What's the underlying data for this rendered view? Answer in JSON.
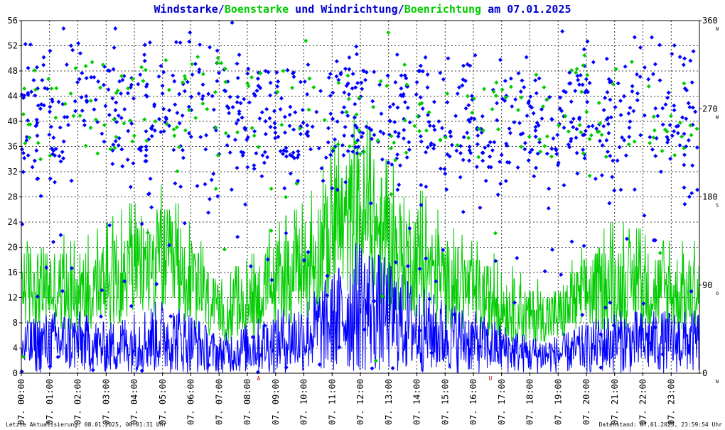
{
  "title_parts": [
    {
      "text": "Windstarke",
      "color": "#0000cc"
    },
    {
      "text": "/",
      "color": "#0000cc"
    },
    {
      "text": "Boenstarke",
      "color": "#00cc00"
    },
    {
      "text": " und ",
      "color": "#0000cc"
    },
    {
      "text": "Windrichtung",
      "color": "#0000cc"
    },
    {
      "text": "/",
      "color": "#0000cc"
    },
    {
      "text": "Boenrichtung",
      "color": "#00cc00"
    },
    {
      "text": " am 07.01.2025",
      "color": "#0000cc"
    }
  ],
  "footer": {
    "left": "Letzte Aktualisierung: 08.01.2025, 00:01:31 Uhr",
    "right": "Datenstand: 07.01.2025, 23:59:54 Uhr"
  },
  "colors": {
    "wind": "#0000ff",
    "gust": "#00cc00",
    "grid": "#000000",
    "marker": "#cc0000"
  },
  "chart_data": {
    "type": "line",
    "x_ticks": [
      "07. 00:00",
      "07. 01:00",
      "07. 02:00",
      "07. 03:00",
      "07. 04:00",
      "07. 05:00",
      "07. 06:00",
      "07. 07:00",
      "07. 08:00",
      "07. 09:00",
      "07. 10:00",
      "07. 11:00",
      "07. 12:00",
      "07. 13:00",
      "07. 14:00",
      "07. 15:00",
      "07. 16:00",
      "07. 17:00",
      "07. 18:00",
      "07. 19:00",
      "07. 20:00",
      "07. 21:00",
      "07. 22:00",
      "07. 23:00"
    ],
    "x_range_hours": [
      0,
      24
    ],
    "y_left": {
      "ticks": [
        "0",
        "4",
        "8",
        "12",
        "16",
        "20",
        "24",
        "28",
        "32",
        "36",
        "40",
        "44",
        "48",
        "52",
        "56"
      ],
      "range": [
        0,
        56
      ]
    },
    "y_right": {
      "ticks": [
        {
          "value": 0,
          "label": "0"
        },
        {
          "value": 90,
          "label": "90"
        },
        {
          "value": 180,
          "label": "180"
        },
        {
          "value": 270,
          "label": "270"
        },
        {
          "value": 360,
          "label": "360"
        }
      ],
      "compass": [
        {
          "value": 0,
          "label": "N"
        },
        {
          "value": 90,
          "label": "O"
        },
        {
          "value": 180,
          "label": "S"
        },
        {
          "value": 270,
          "label": "W"
        },
        {
          "value": 360,
          "label": "N"
        }
      ],
      "range": [
        0,
        360
      ]
    },
    "bottom_markers": [
      {
        "hour": 8.4,
        "label": "A"
      },
      {
        "hour": 16.6,
        "label": "U"
      }
    ],
    "grid": true,
    "series": [
      {
        "name": "Windstarke",
        "color": "#0000ff",
        "kind": "line",
        "hours": [
          0,
          1,
          2,
          3,
          4,
          5,
          6,
          7,
          8,
          9,
          10,
          11,
          12,
          13,
          14,
          15,
          16,
          17,
          18,
          19,
          20,
          21,
          22,
          23,
          24
        ],
        "values": [
          4,
          5,
          5,
          4,
          5,
          6,
          5,
          3,
          4,
          5,
          6,
          8,
          11,
          9,
          7,
          6,
          5,
          4,
          3,
          3,
          4,
          5,
          5,
          5,
          5
        ]
      },
      {
        "name": "Boenstarke",
        "color": "#00cc00",
        "kind": "line",
        "hours": [
          0,
          1,
          2,
          3,
          4,
          5,
          6,
          7,
          8,
          9,
          10,
          11,
          12,
          13,
          14,
          15,
          16,
          17,
          18,
          19,
          20,
          21,
          22,
          23,
          24
        ],
        "values": [
          16,
          15,
          14,
          16,
          18,
          20,
          16,
          10,
          12,
          16,
          18,
          24,
          28,
          22,
          20,
          16,
          14,
          12,
          10,
          10,
          14,
          16,
          15,
          14,
          14
        ]
      },
      {
        "name": "Windrichtung",
        "color": "#0000ff",
        "kind": "scatter",
        "hours": [
          0,
          1,
          2,
          3,
          4,
          5,
          6,
          7,
          8,
          9,
          10,
          11,
          12,
          13,
          14,
          15,
          16,
          17,
          18,
          19,
          20,
          21,
          22,
          23,
          24
        ],
        "values": [
          270,
          250,
          260,
          270,
          255,
          265,
          270,
          275,
          250,
          270,
          260,
          265,
          270,
          255,
          270,
          265,
          250,
          245,
          260,
          265,
          270,
          260,
          270,
          260,
          250
        ]
      },
      {
        "name": "Boenrichtung",
        "color": "#00cc00",
        "kind": "scatter",
        "hours": [
          0,
          1,
          2,
          3,
          4,
          5,
          6,
          7,
          8,
          9,
          10,
          11,
          12,
          13,
          14,
          15,
          16,
          17,
          18,
          19,
          20,
          21,
          22,
          23,
          24
        ],
        "values": [
          275,
          255,
          265,
          275,
          260,
          270,
          275,
          280,
          255,
          275,
          265,
          270,
          275,
          260,
          275,
          270,
          255,
          250,
          265,
          270,
          275,
          265,
          275,
          265,
          255
        ]
      }
    ]
  }
}
